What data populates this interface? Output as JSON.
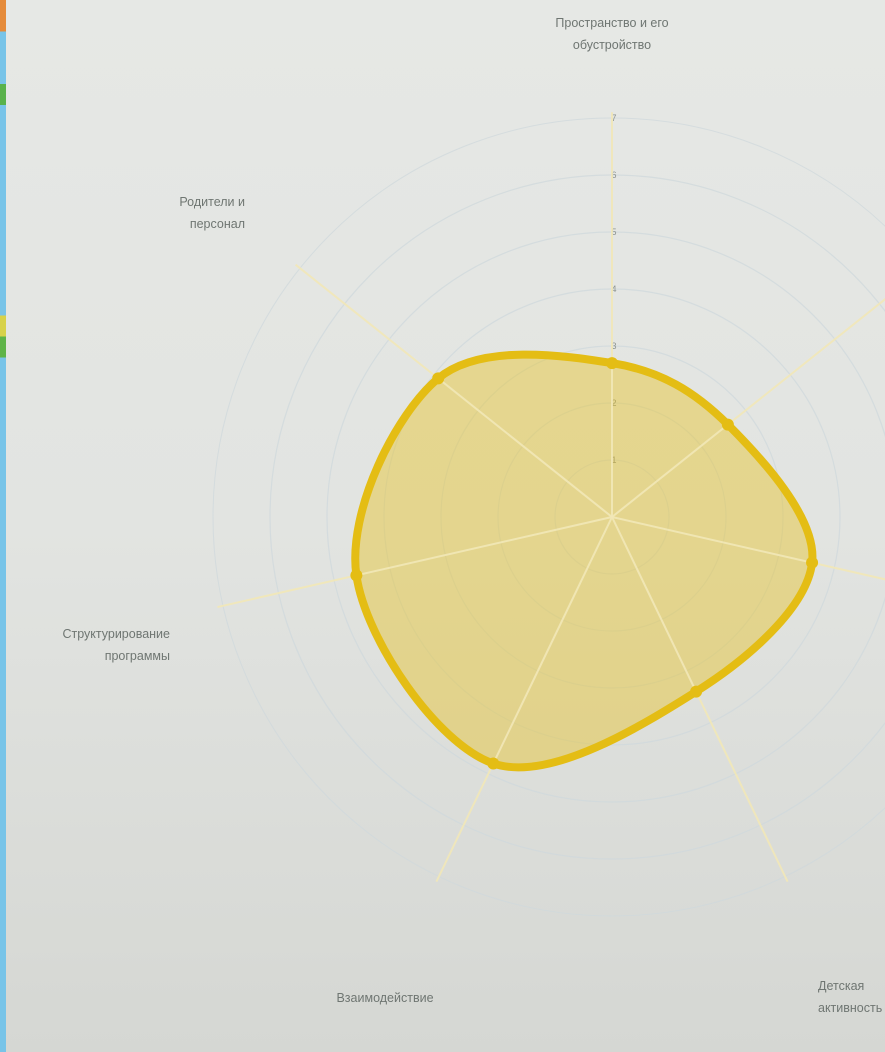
{
  "chart_data": {
    "type": "radar",
    "axes": [
      "Пространство и его обустройство",
      "",
      "Детская активность",
      "",
      "Взаимодействие",
      "Структурирование программы",
      "Родители и персонал"
    ],
    "axis_label_lines": [
      [
        "Пространство и его",
        "обустройство"
      ],
      [],
      [
        "Детская",
        "активность"
      ],
      [],
      [
        "Взаимодействие"
      ],
      [
        "Структурирование",
        "программы"
      ],
      [
        "Родители и",
        "персонал"
      ]
    ],
    "ticks": [
      "1",
      "2",
      "3",
      "4",
      "5",
      "6",
      "7"
    ],
    "rlim": [
      0,
      7
    ],
    "series": [
      {
        "values": [
          2.7,
          2.6,
          3.6,
          3.4,
          4.8,
          4.6,
          3.9
        ]
      }
    ],
    "grid": true,
    "colors": {
      "fill": "#e8c21c",
      "stroke": "#e4bd14",
      "spoke": "#f2e8b8",
      "grid": "#cfd8dc"
    }
  }
}
